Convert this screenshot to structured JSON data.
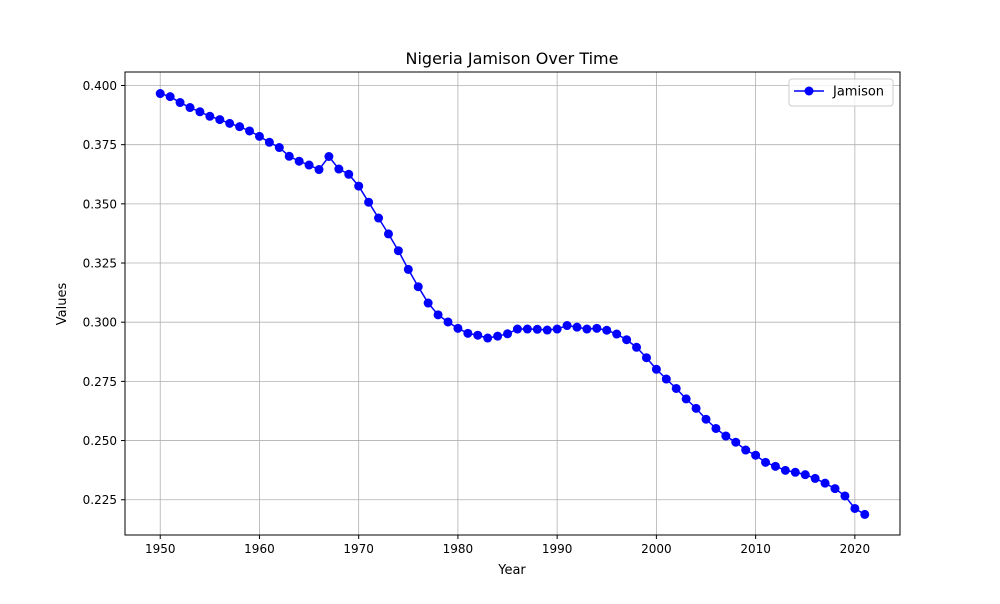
{
  "chart_data": {
    "type": "line",
    "title": "Nigeria Jamison Over Time",
    "xlabel": "Year",
    "ylabel": "Values",
    "xlim": [
      1946.45,
      2024.55
    ],
    "ylim": [
      0.2101,
      0.4057
    ],
    "xticks": [
      1950,
      1960,
      1970,
      1980,
      1990,
      2000,
      2010,
      2020
    ],
    "yticks": [
      0.225,
      0.25,
      0.275,
      0.3,
      0.325,
      0.35,
      0.375,
      0.4
    ],
    "ytick_labels": [
      "0.225",
      "0.250",
      "0.275",
      "0.300",
      "0.325",
      "0.350",
      "0.375",
      "0.400"
    ],
    "grid": true,
    "legend_position": "top-right",
    "series": [
      {
        "name": "Jamison",
        "color": "#0000ff",
        "marker": "circle",
        "x": [
          1950,
          1951,
          1952,
          1953,
          1954,
          1955,
          1956,
          1957,
          1958,
          1959,
          1960,
          1961,
          1962,
          1963,
          1964,
          1965,
          1966,
          1967,
          1968,
          1969,
          1970,
          1971,
          1972,
          1973,
          1974,
          1975,
          1976,
          1977,
          1978,
          1979,
          1980,
          1981,
          1982,
          1983,
          1984,
          1985,
          1986,
          1987,
          1988,
          1989,
          1990,
          1991,
          1992,
          1993,
          1994,
          1995,
          1996,
          1997,
          1998,
          1999,
          2000,
          2001,
          2002,
          2003,
          2004,
          2005,
          2006,
          2007,
          2008,
          2009,
          2010,
          2011,
          2012,
          2013,
          2014,
          2015,
          2016,
          2017,
          2018,
          2019,
          2020,
          2021
        ],
        "y": [
          0.3966,
          0.3953,
          0.3928,
          0.3907,
          0.3889,
          0.387,
          0.3856,
          0.384,
          0.3826,
          0.3808,
          0.3785,
          0.376,
          0.3738,
          0.3701,
          0.368,
          0.3664,
          0.3645,
          0.37,
          0.3647,
          0.3625,
          0.3575,
          0.3507,
          0.344,
          0.3373,
          0.3302,
          0.3223,
          0.315,
          0.3081,
          0.3031,
          0.3001,
          0.2974,
          0.2953,
          0.2945,
          0.2933,
          0.2941,
          0.2951,
          0.2971,
          0.2971,
          0.297,
          0.2967,
          0.2971,
          0.2986,
          0.2979,
          0.2971,
          0.2974,
          0.2966,
          0.295,
          0.2926,
          0.2894,
          0.285,
          0.2801,
          0.276,
          0.272,
          0.2676,
          0.2636,
          0.259,
          0.2551,
          0.2519,
          0.2493,
          0.246,
          0.2438,
          0.2408,
          0.2391,
          0.2374,
          0.2366,
          0.2356,
          0.234,
          0.232,
          0.2297,
          0.2266,
          0.2213,
          0.2188
        ]
      }
    ]
  }
}
